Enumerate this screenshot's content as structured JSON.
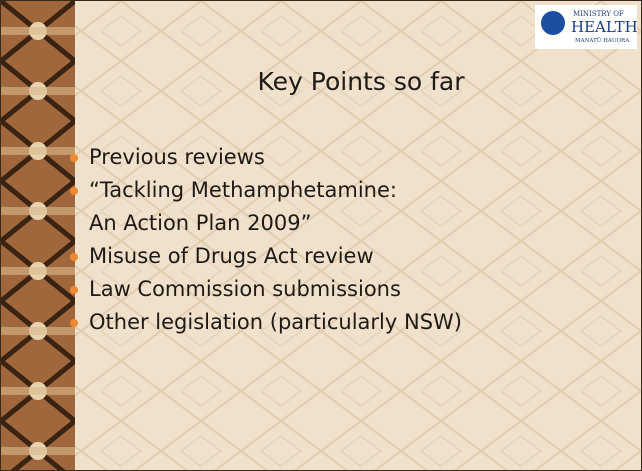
{
  "logo": {
    "line1": "MINISTRY OF",
    "line2": "HEALTH",
    "line3": "MANATŪ HAUORA"
  },
  "slide": {
    "title": "Key Points so far",
    "bullets": [
      {
        "lines": [
          "Previous reviews"
        ]
      },
      {
        "lines": [
          "“Tackling Methamphetamine:",
          "An Action Plan 2009”"
        ]
      },
      {
        "lines": [
          "Misuse of Drugs Act review"
        ]
      },
      {
        "lines": [
          "Law Commission submissions"
        ]
      },
      {
        "lines": [
          "Other legislation (particularly NSW)"
        ]
      }
    ]
  }
}
